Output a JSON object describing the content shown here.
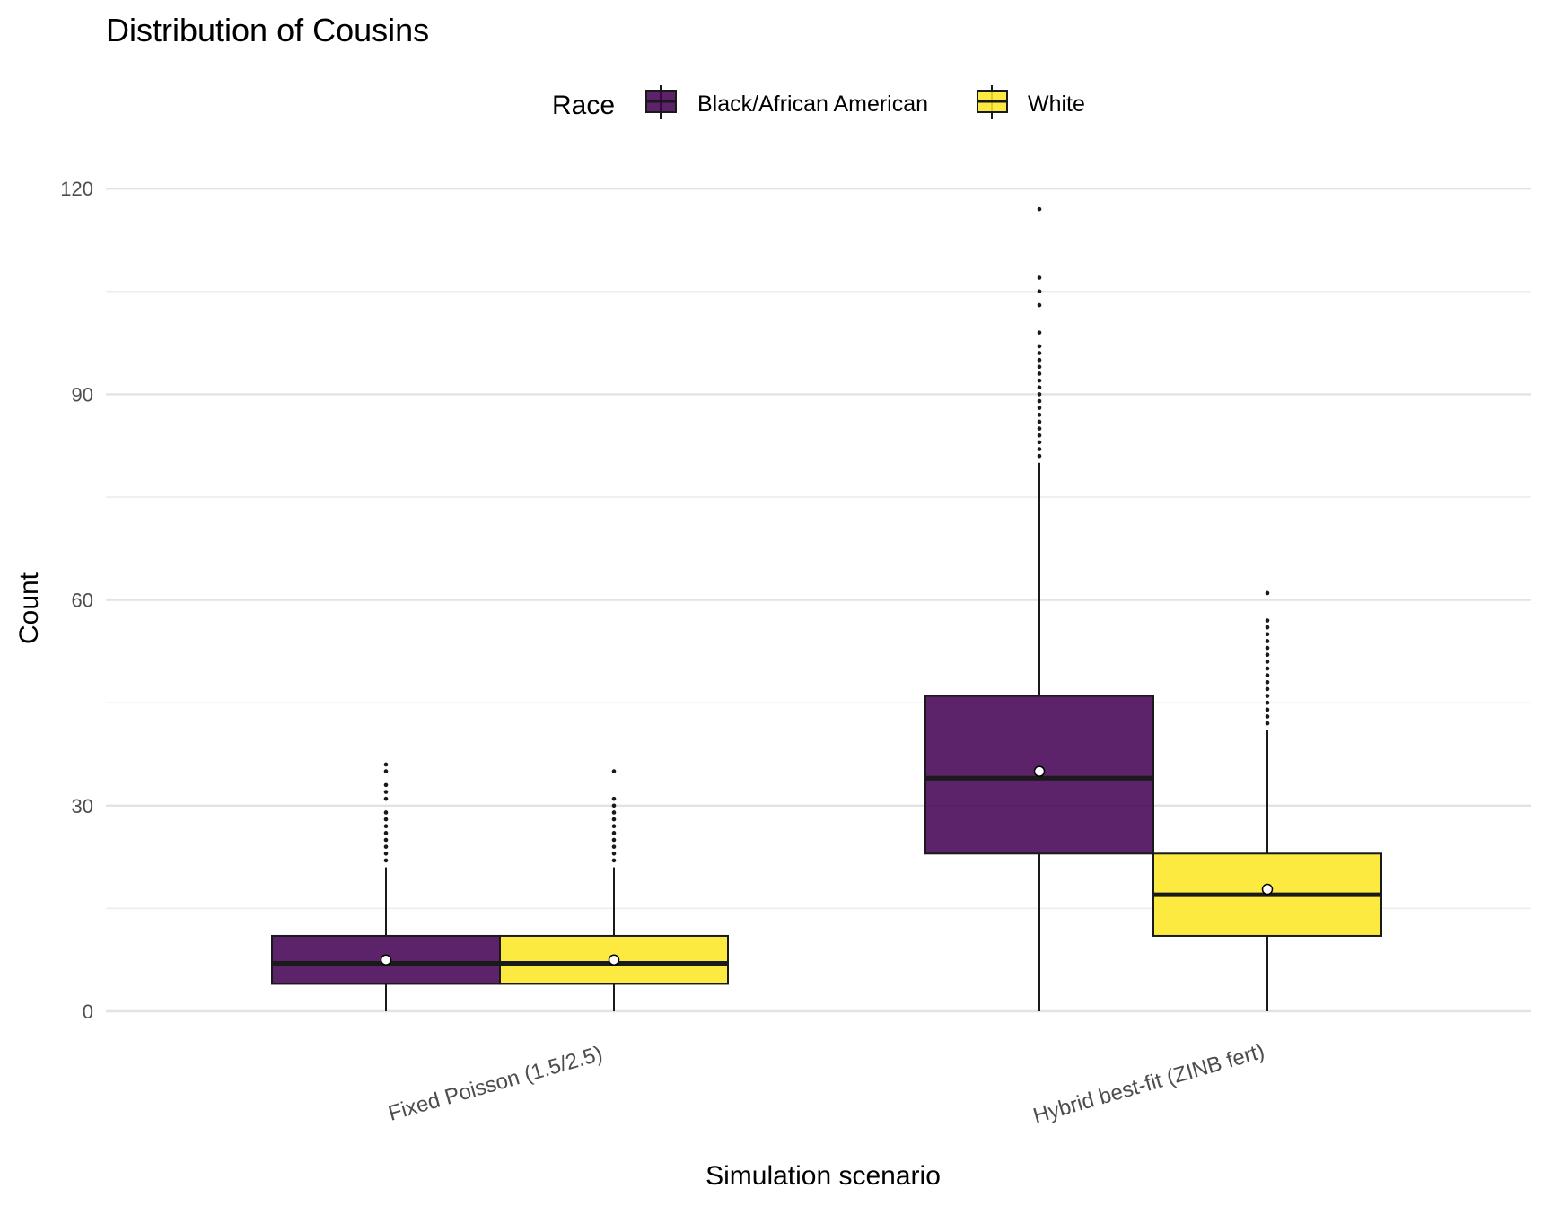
{
  "chart_data": {
    "type": "boxplot",
    "title": "Distribution of Cousins",
    "xlabel": "Simulation scenario",
    "ylabel": "Count",
    "ylim": [
      -2,
      128
    ],
    "yticks": [
      0,
      30,
      60,
      90,
      120
    ],
    "grid": true,
    "legend": {
      "title": "Race",
      "position": "top",
      "entries": [
        {
          "name": "Black/African American",
          "color": "#440154"
        },
        {
          "name": "White",
          "color": "#FDE725"
        }
      ]
    },
    "categories": [
      "Fixed Poisson (1.5/2.5)",
      "Hybrid best-fit (ZINB fert)"
    ],
    "series": [
      {
        "name": "Black/African American",
        "color": "#440154",
        "boxes": [
          {
            "whisker_low": 0,
            "q1": 4,
            "median": 7,
            "q3": 11,
            "whisker_high": 21,
            "mean": 7.5,
            "outliers": [
              22,
              23,
              24,
              25,
              26,
              27,
              28,
              29,
              31,
              32,
              33,
              35,
              36
            ]
          },
          {
            "whisker_low": 0,
            "q1": 23,
            "median": 34,
            "q3": 46,
            "whisker_high": 80,
            "mean": 35,
            "outliers": [
              81,
              82,
              83,
              84,
              85,
              86,
              87,
              88,
              89,
              90,
              91,
              92,
              93,
              94,
              95,
              96,
              97,
              99,
              103,
              105,
              107,
              117
            ]
          }
        ]
      },
      {
        "name": "White",
        "color": "#FDE725",
        "boxes": [
          {
            "whisker_low": 0,
            "q1": 4,
            "median": 7,
            "q3": 11,
            "whisker_high": 21,
            "mean": 7.5,
            "outliers": [
              22,
              23,
              24,
              25,
              26,
              27,
              28,
              29,
              30,
              31,
              35
            ]
          },
          {
            "whisker_low": 0,
            "q1": 11,
            "median": 17,
            "q3": 23,
            "whisker_high": 41,
            "mean": 17.8,
            "outliers": [
              42,
              43,
              44,
              45,
              46,
              47,
              48,
              49,
              50,
              51,
              52,
              53,
              54,
              55,
              56,
              57,
              61
            ]
          }
        ]
      }
    ]
  }
}
